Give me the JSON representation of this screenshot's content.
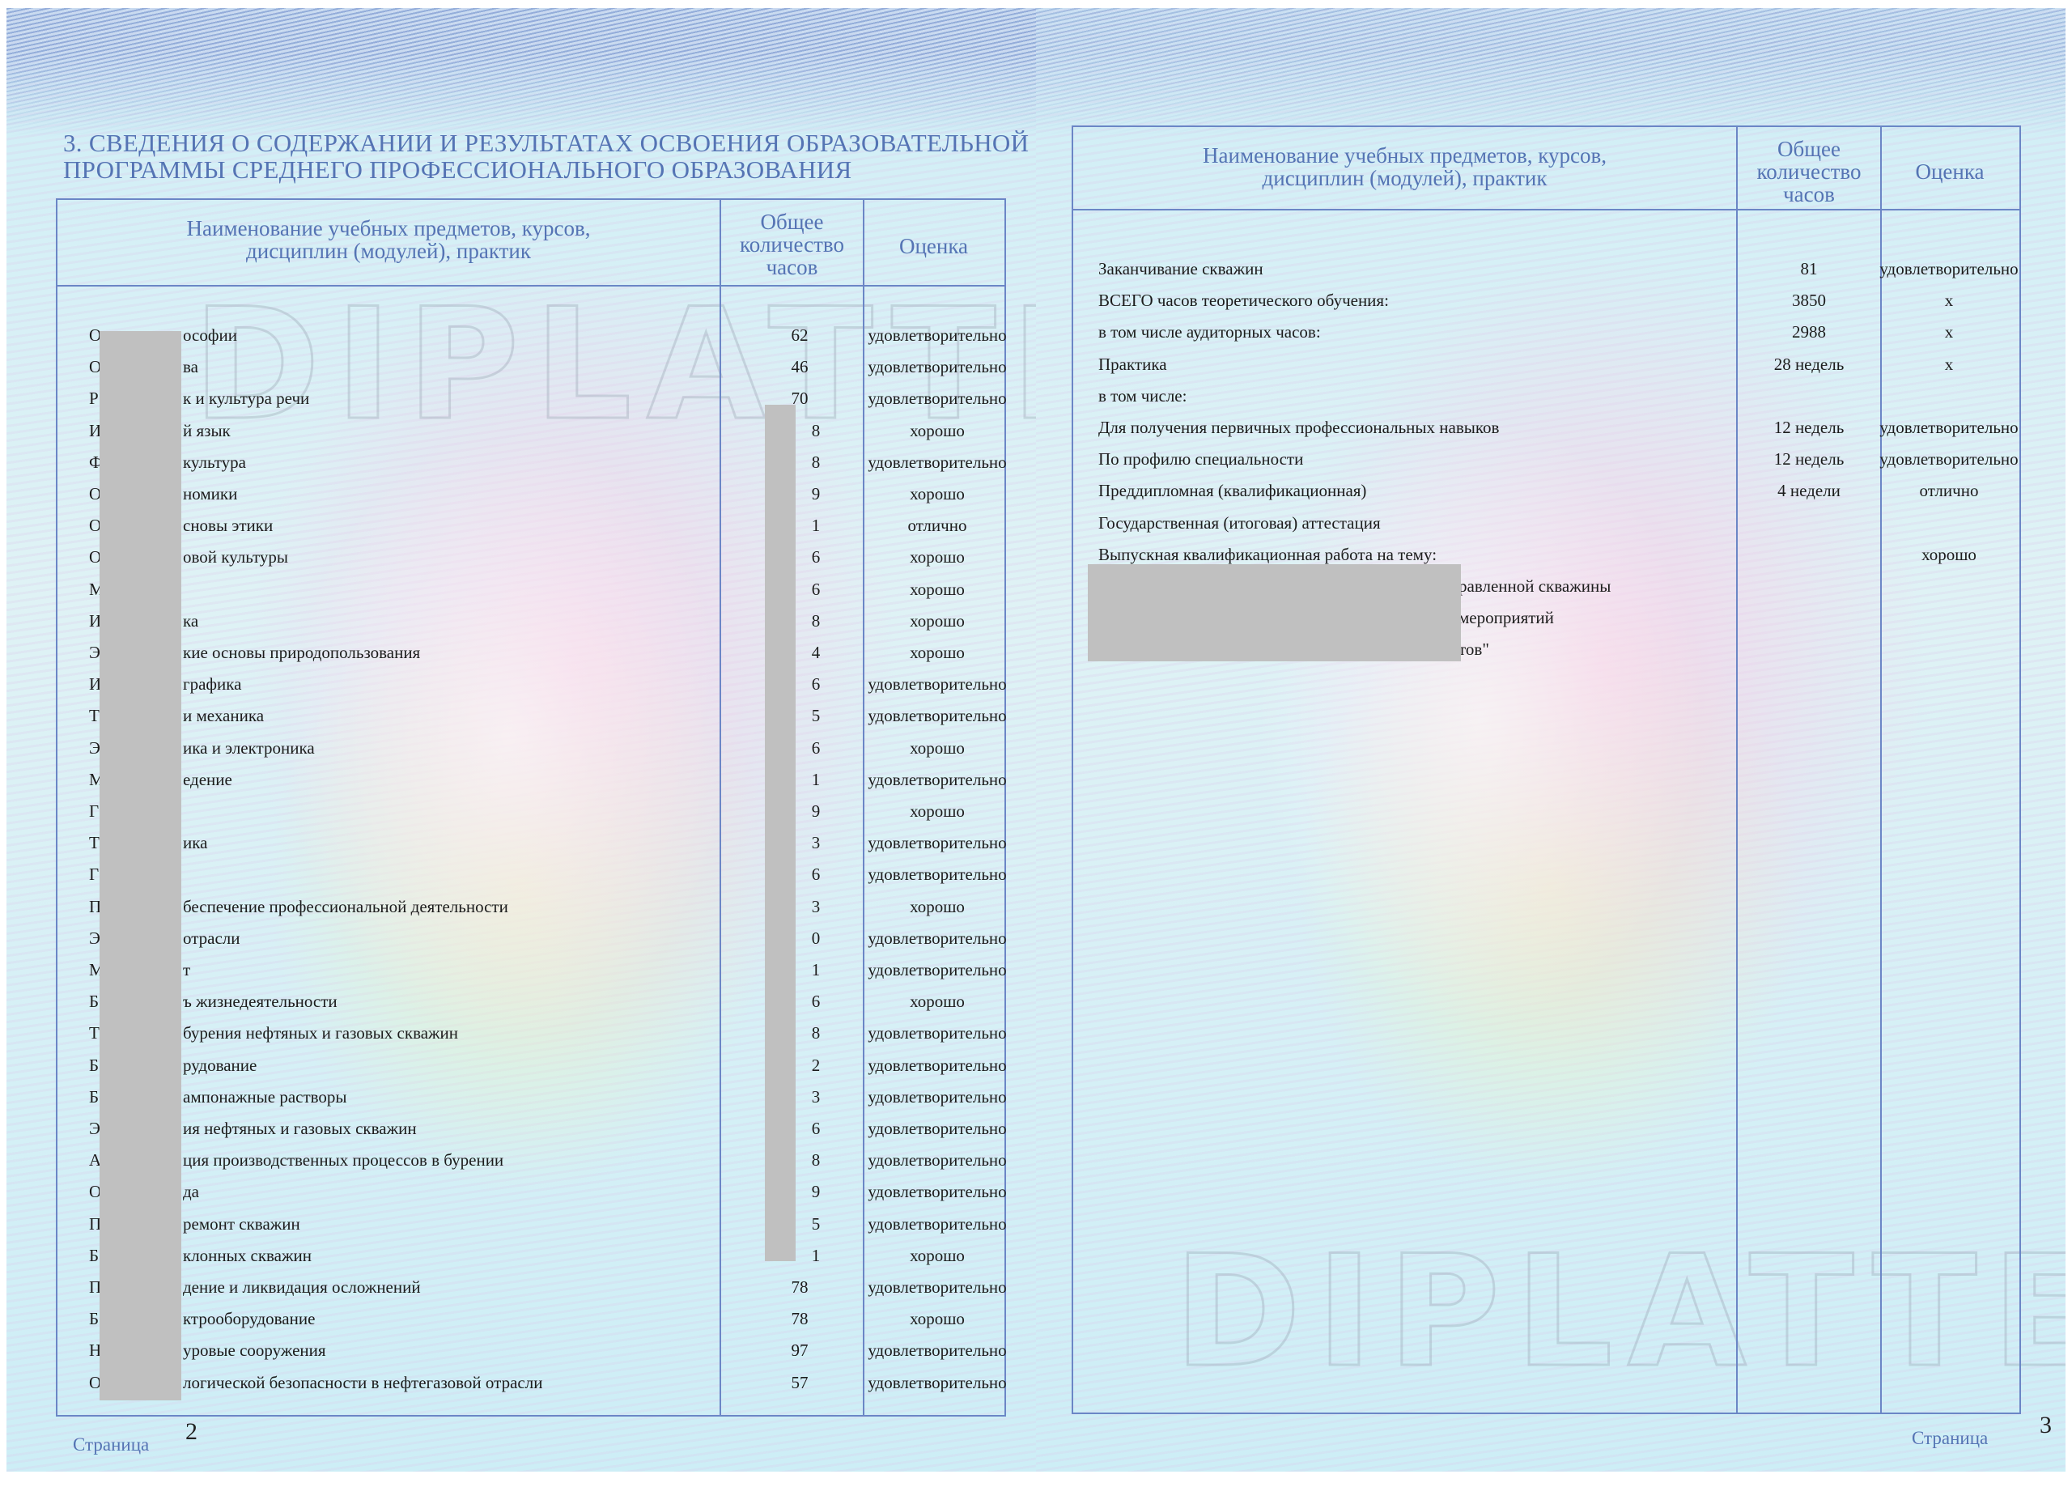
{
  "watermark_text": "DIPLATTE",
  "left_page": {
    "section_title_line1": "3. СВЕДЕНИЯ О СОДЕРЖАНИИ И РЕЗУЛЬТАТАХ ОСВОЕНИЯ ОБРАЗОВАТЕЛЬНОЙ",
    "section_title_line2": "ПРОГРАММЫ СРЕДНЕГО ПРОФЕССИОНАЛЬНОГО ОБРАЗОВАНИЯ",
    "headers": {
      "name_line1": "Наименование учебных предметов, курсов,",
      "name_line2": "дисциплин (модулей), практик",
      "hours_line1": "Общее",
      "hours_line2": "количество",
      "hours_line3": "часов",
      "grade": "Оценка"
    },
    "rows": [
      {
        "prefix": "О",
        "name": "ософии",
        "hours": "62",
        "grade": "удовлетворительно"
      },
      {
        "prefix": "О",
        "name": "ва",
        "hours": "46",
        "grade": "удовлетворительно"
      },
      {
        "prefix": "Р",
        "name": "к и культура речи",
        "hours": "70",
        "grade": "удовлетворительно"
      },
      {
        "prefix": "И",
        "name": "й язык",
        "hours": "8",
        "grade": "хорошо"
      },
      {
        "prefix": "Ф",
        "name": "культура",
        "hours": "8",
        "grade": "удовлетворительно"
      },
      {
        "prefix": "О",
        "name": "номики",
        "hours": "9",
        "grade": "хорошо"
      },
      {
        "prefix": "О",
        "name": "сновы этики",
        "hours": "1",
        "grade": "отлично"
      },
      {
        "prefix": "О",
        "name": "овой культуры",
        "hours": "6",
        "grade": "хорошо"
      },
      {
        "prefix": "М",
        "name": "",
        "hours": "6",
        "grade": "хорошо"
      },
      {
        "prefix": "И",
        "name": "ка",
        "hours": "8",
        "grade": "хорошо"
      },
      {
        "prefix": "Э",
        "name": "кие основы природопользования",
        "hours": "4",
        "grade": "хорошо"
      },
      {
        "prefix": "И",
        "name": "графика",
        "hours": "6",
        "grade": "удовлетворительно"
      },
      {
        "prefix": "Т",
        "name": "и механика",
        "hours": "5",
        "grade": "удовлетворительно"
      },
      {
        "prefix": "Э",
        "name": "ика и электроника",
        "hours": "6",
        "grade": "хорошо"
      },
      {
        "prefix": "М",
        "name": "едение",
        "hours": "1",
        "grade": "удовлетворительно"
      },
      {
        "prefix": "Г",
        "name": "",
        "hours": "9",
        "grade": "хорошо"
      },
      {
        "prefix": "Т",
        "name": "ика",
        "hours": "3",
        "grade": "удовлетворительно"
      },
      {
        "prefix": "Г",
        "name": "",
        "hours": "6",
        "grade": "удовлетворительно"
      },
      {
        "prefix": "П",
        "name": "беспечение профессиональной деятельности",
        "hours": "3",
        "grade": "хорошо"
      },
      {
        "prefix": "Э",
        "name": "отрасли",
        "hours": "0",
        "grade": "удовлетворительно"
      },
      {
        "prefix": "М",
        "name": "т",
        "hours": "1",
        "grade": "удовлетворительно"
      },
      {
        "prefix": "Б",
        "name": "ъ жизнедеятельности",
        "hours": "6",
        "grade": "хорошо"
      },
      {
        "prefix": "Т",
        "name": "бурения нефтяных и газовых скважин",
        "hours": "8",
        "grade": "удовлетворительно"
      },
      {
        "prefix": "Б",
        "name": "рудование",
        "hours": "2",
        "grade": "удовлетворительно"
      },
      {
        "prefix": "Б",
        "name": "ампонажные растворы",
        "hours": "3",
        "grade": "удовлетворительно"
      },
      {
        "prefix": "Э",
        "name": "ия нефтяных и газовых скважин",
        "hours": "6",
        "grade": "удовлетворительно"
      },
      {
        "prefix": "А",
        "name": "ция производственных процессов в бурении",
        "hours": "8",
        "grade": "удовлетворительно"
      },
      {
        "prefix": "О",
        "name": "да",
        "hours": "9",
        "grade": "удовлетворительно"
      },
      {
        "prefix": "П",
        "name": "ремонт скважин",
        "hours": "5",
        "grade": "удовлетворительно"
      },
      {
        "prefix": "Б",
        "name": "клонных скважин",
        "hours": "1",
        "grade": "хорошо"
      },
      {
        "prefix": "П",
        "name": "дение и ликвидация осложнений",
        "hours": "78",
        "grade": "удовлетворительно"
      },
      {
        "prefix": "Б",
        "name": "ктрооборудование",
        "hours": "78",
        "grade": "хорошо"
      },
      {
        "prefix": "Н",
        "name": "уровые сооружения",
        "hours": "97",
        "grade": "удовлетворительно"
      },
      {
        "prefix": "О",
        "name": "логической безопасности в нефтегазовой отрасли",
        "hours": "57",
        "grade": "удовлетворительно"
      }
    ],
    "footer_label": "Страница",
    "page_number": "2"
  },
  "right_page": {
    "headers": {
      "name_line1": "Наименование учебных предметов, курсов,",
      "name_line2": "дисциплин (модулей), практик",
      "hours_line1": "Общее",
      "hours_line2": "количество",
      "hours_line3": "часов",
      "grade": "Оценка"
    },
    "rows": [
      {
        "name": "Заканчивание скважин",
        "hours": "81",
        "grade": "удовлетворительно"
      },
      {
        "name": "ВСЕГО часов теоретического обучения:",
        "hours": "3850",
        "grade": "x"
      },
      {
        "name": "в том числе аудиторных часов:",
        "hours": "2988",
        "grade": "x"
      },
      {
        "name": "Практика",
        "hours": "28 недель",
        "grade": "x"
      },
      {
        "name": "в том числе:",
        "hours": "",
        "grade": ""
      },
      {
        "name": "Для получения первичных профессиональных навыков",
        "hours": "12 недель",
        "grade": "удовлетворительно"
      },
      {
        "name": "По профилю специальности",
        "hours": "12 недель",
        "grade": "удовлетворительно"
      },
      {
        "name": "Преддипломная (квалификационная)",
        "hours": "4 недели",
        "grade": "отлично"
      },
      {
        "name": "Государственная (итоговая) аттестация",
        "hours": "",
        "grade": ""
      },
      {
        "name": "Выпускная квалификационная работа на тему:",
        "hours": "",
        "grade": "хорошо"
      }
    ],
    "thesis_fragments": [
      "равленной скважины",
      "мероприятий",
      "тов\""
    ],
    "footer_label": "Страница",
    "page_number": "3"
  }
}
